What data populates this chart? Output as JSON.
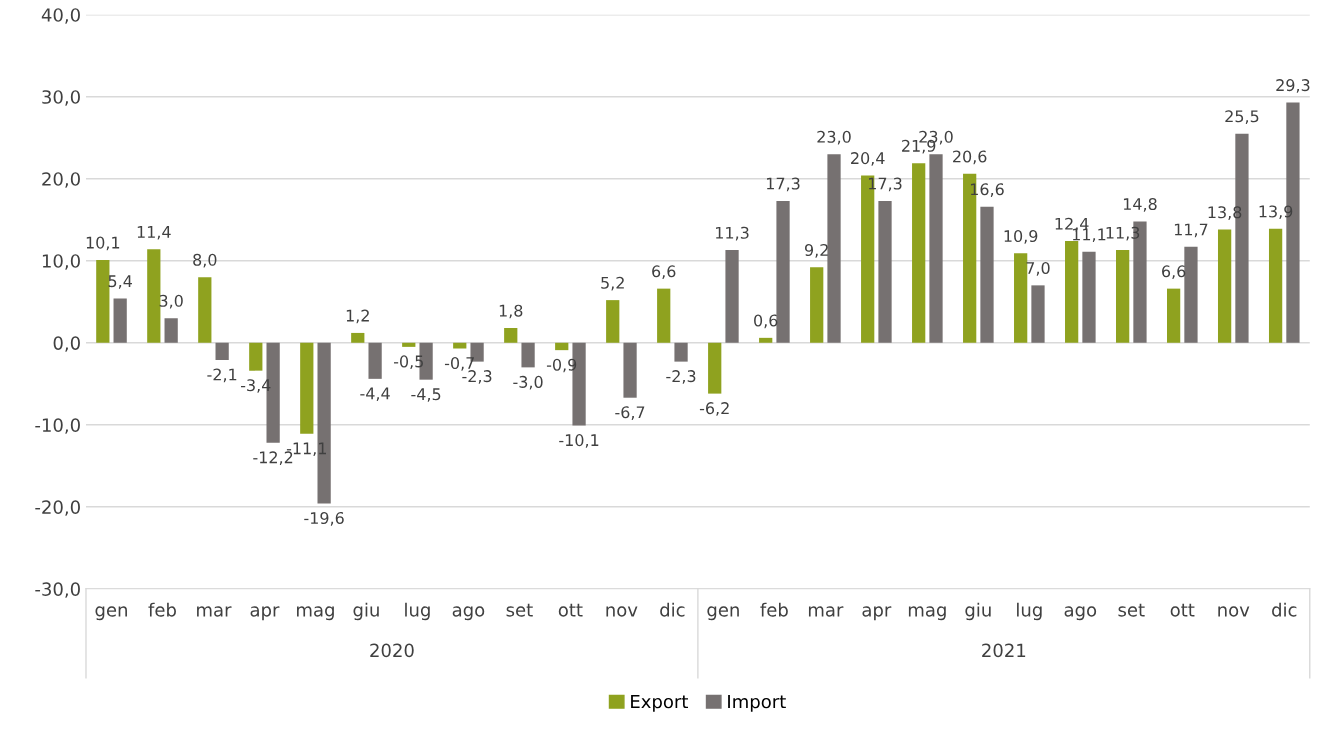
{
  "chart_data": {
    "type": "bar",
    "categories": [
      "gen",
      "feb",
      "mar",
      "apr",
      "mag",
      "giu",
      "lug",
      "ago",
      "set",
      "ott",
      "nov",
      "dic",
      "gen",
      "feb",
      "mar",
      "apr",
      "mag",
      "giu",
      "lug",
      "ago",
      "set",
      "ott",
      "nov",
      "dic"
    ],
    "series": [
      {
        "name": "Export",
        "color": "#8fa21f",
        "values": [
          10.1,
          11.4,
          8.0,
          -3.4,
          -11.1,
          1.2,
          -0.5,
          -0.7,
          1.8,
          -0.9,
          5.2,
          6.6,
          -6.2,
          0.6,
          9.2,
          20.4,
          21.9,
          20.6,
          10.9,
          12.4,
          11.3,
          6.6,
          13.8,
          13.9
        ],
        "value_labels": [
          "10,1",
          "11,4",
          "8,0",
          "-3,4",
          "-11,1",
          "1,2",
          "-0,5",
          "-0,7",
          "1,8",
          "-0,9",
          "5,2",
          "6,6",
          "-6,2",
          "0,6",
          "9,2",
          "20,4",
          "21,9",
          "20,6",
          "10,9",
          "12,4",
          "11,3",
          "6,6",
          "13,8",
          "13,9"
        ]
      },
      {
        "name": "Import",
        "color": "#767171",
        "values": [
          5.4,
          3.0,
          -2.1,
          -12.2,
          -19.6,
          -4.4,
          -4.5,
          -2.3,
          -3.0,
          -10.1,
          -6.7,
          -2.3,
          11.3,
          17.3,
          23.0,
          17.3,
          23.0,
          16.6,
          7.0,
          11.1,
          14.8,
          11.7,
          25.5,
          29.3
        ],
        "value_labels": [
          "5,4",
          "3,0",
          "-2,1",
          "-12,2",
          "-19,6",
          "-4,4",
          "-4,5",
          "-2,3",
          "-3,0",
          "-10,1",
          "-6,7",
          "-2,3",
          "11,3",
          "17,3",
          "23,0",
          "17,3",
          "23,0",
          "16,6",
          "7,0",
          "11,1",
          "14,8",
          "11,7",
          "25,5",
          "29,3"
        ]
      }
    ],
    "ylim": [
      -30,
      40
    ],
    "yticks": [
      {
        "value": -30,
        "label": "-30,0"
      },
      {
        "value": -20,
        "label": "-20,0"
      },
      {
        "value": -10,
        "label": "-10,0"
      },
      {
        "value": 0,
        "label": "0,0"
      },
      {
        "value": 10,
        "label": "10,0"
      },
      {
        "value": 20,
        "label": "20,0"
      },
      {
        "value": 30,
        "label": "30,0"
      },
      {
        "value": 40,
        "label": "40,0"
      }
    ],
    "annotations": [
      "2020",
      "2021"
    ],
    "grid": "y",
    "legend": "bottom"
  }
}
